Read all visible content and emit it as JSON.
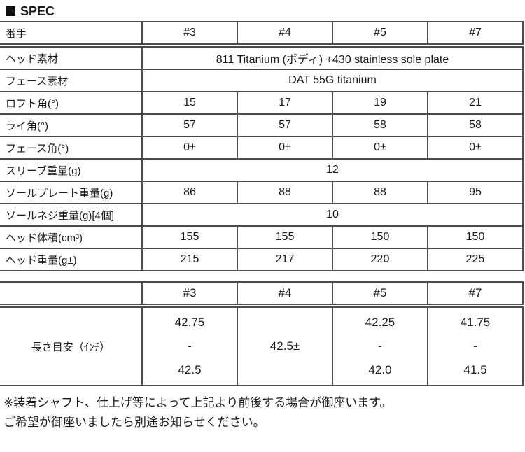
{
  "title": {
    "icon": "black-square",
    "label": "SPEC"
  },
  "colors": {
    "border": "#4c4c4c",
    "text": "#1a1a1a",
    "background": "#ffffff"
  },
  "spec_table": {
    "header": [
      "番手",
      "#3",
      "#4",
      "#5",
      "#7"
    ],
    "rows": [
      {
        "label": "ヘッド素材",
        "span": "811 Titanium (ボディ) +430 stainless sole plate"
      },
      {
        "label": "フェース素材",
        "span": "DAT 55G titanium"
      },
      {
        "label": "ロフト角(°)",
        "values": [
          "15",
          "17",
          "19",
          "21"
        ]
      },
      {
        "label": "ライ角(°)",
        "values": [
          "57",
          "57",
          "58",
          "58"
        ]
      },
      {
        "label": "フェース角(°)",
        "values": [
          "0±",
          "0±",
          "0±",
          "0±"
        ]
      },
      {
        "label": "スリーブ重量(g)",
        "span": "12"
      },
      {
        "label": "ソールプレート重量(g)",
        "values": [
          "86",
          "88",
          "88",
          "95"
        ]
      },
      {
        "label": "ソールネジ重量(g)[4個]",
        "span": "10"
      },
      {
        "label": "ヘッド体積(cm³)",
        "values": [
          "155",
          "155",
          "150",
          "150"
        ]
      },
      {
        "label": "ヘッド重量(g±)",
        "values": [
          "215",
          "217",
          "220",
          "225"
        ]
      }
    ]
  },
  "length_table": {
    "header": [
      "",
      "#3",
      "#4",
      "#5",
      "#7"
    ],
    "row_label": "長さ目安（ｲﾝﾁ）",
    "cells": [
      {
        "lines": [
          "42.75",
          "-",
          "42.5"
        ]
      },
      {
        "lines": [
          "42.5±"
        ]
      },
      {
        "lines": [
          "42.25",
          "-",
          "42.0"
        ]
      },
      {
        "lines": [
          "41.75",
          "-",
          "41.5"
        ]
      }
    ]
  },
  "notes": [
    "※装着シャフト、仕上げ等によって上記より前後する場合が御座います。",
    "ご希望が御座いましたら別途お知らせください。"
  ]
}
